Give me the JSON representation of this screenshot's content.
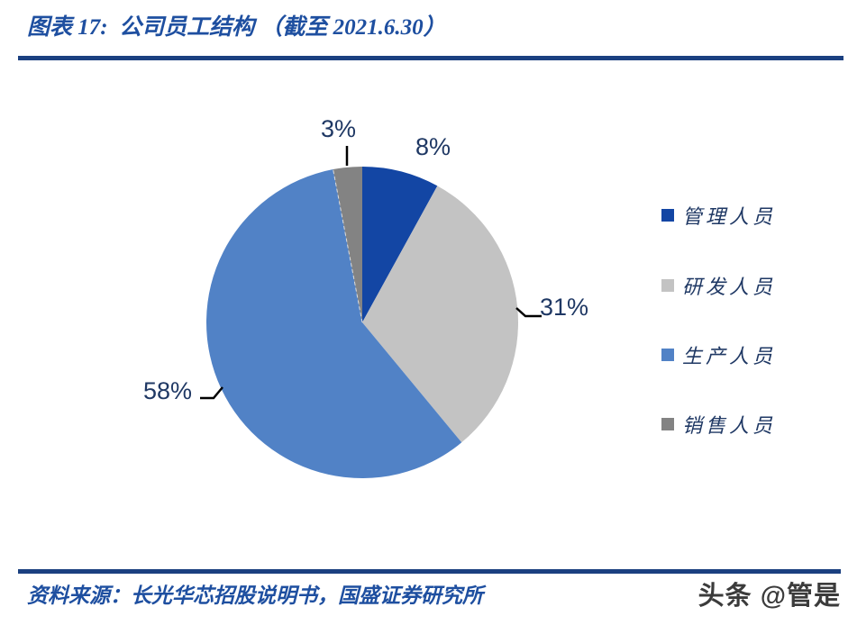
{
  "header": {
    "title": "图表 17:  公司员工结构 （截至 2021.6.30）"
  },
  "footer": {
    "source": "资料来源：长光华芯招股说明书，国盛证券研究所",
    "watermark": "头条 @管是"
  },
  "colors": {
    "divider": "#1B4080",
    "title_text": "#1E4FA0",
    "label_text": "#1F3864"
  },
  "chart_data": {
    "type": "pie",
    "title": "公司员工结构（截至2021.6.30）",
    "unit": "%",
    "legend_position": "right",
    "start_angle_deg": 0,
    "direction": "clockwise",
    "slices": [
      {
        "label": "管理人员",
        "value": 8,
        "pct_label": "8%",
        "color": "#1346A4"
      },
      {
        "label": "研发人员",
        "value": 31,
        "pct_label": "31%",
        "color": "#C3C3C3"
      },
      {
        "label": "生产人员",
        "value": 58,
        "pct_label": "58%",
        "color": "#5182C6"
      },
      {
        "label": "销售人员",
        "value": 3,
        "pct_label": "3%",
        "color": "#838383"
      }
    ]
  }
}
